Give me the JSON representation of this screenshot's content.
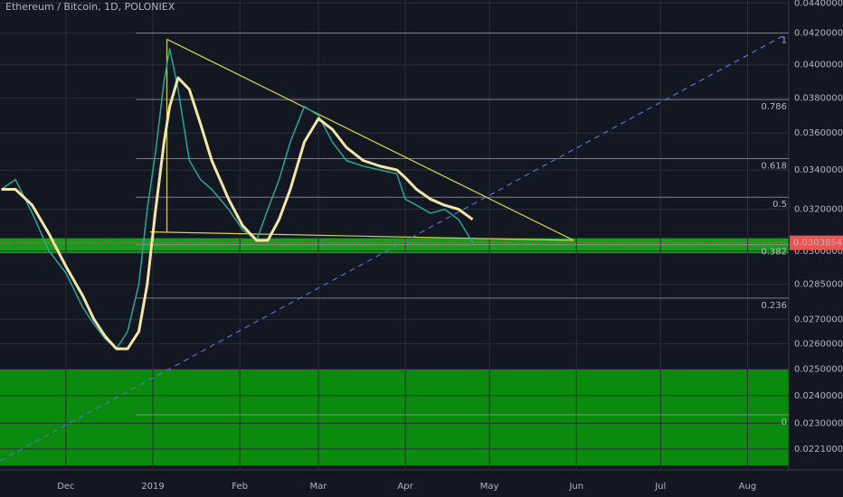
{
  "chart_data": {
    "type": "line",
    "title": "Ethereum / Bitcoin, 1D, POLONIEX",
    "log_scale": true,
    "grid": true,
    "xlim": [
      -23.5,
      257.7
    ],
    "ylim": [
      0.0214,
      0.0442
    ],
    "xticks": [
      {
        "value": 0,
        "label": "Dec"
      },
      {
        "value": 31,
        "label": "2019"
      },
      {
        "value": 62,
        "label": "Feb"
      },
      {
        "value": 90,
        "label": "Mar"
      },
      {
        "value": 121,
        "label": "Apr"
      },
      {
        "value": 151,
        "label": "May"
      },
      {
        "value": 182,
        "label": "Jun"
      },
      {
        "value": 212,
        "label": "Jul"
      },
      {
        "value": 243,
        "label": "Aug"
      }
    ],
    "yticks": [
      {
        "value": 0.044,
        "label": "0.04400000"
      },
      {
        "value": 0.042,
        "label": "0.04200000"
      },
      {
        "value": 0.04,
        "label": "0.04000000"
      },
      {
        "value": 0.038,
        "label": "0.03800000"
      },
      {
        "value": 0.036,
        "label": "0.03600000"
      },
      {
        "value": 0.034,
        "label": "0.03400000"
      },
      {
        "value": 0.032,
        "label": "0.03200000"
      },
      {
        "value": 0.03,
        "label": "0.03000000"
      },
      {
        "value": 0.0285,
        "label": "0.02850000"
      },
      {
        "value": 0.027,
        "label": "0.02700000"
      },
      {
        "value": 0.026,
        "label": "0.02600000"
      },
      {
        "value": 0.025,
        "label": "0.02500000"
      },
      {
        "value": 0.024,
        "label": "0.02400000"
      },
      {
        "value": 0.023,
        "label": "0.02300000"
      },
      {
        "value": 0.0221,
        "label": "0.02210000"
      }
    ],
    "x": [
      -23,
      -18,
      -12,
      -6,
      0,
      6,
      10,
      14,
      18,
      22,
      26,
      29,
      32,
      35,
      37,
      40,
      44,
      48,
      52,
      58,
      63,
      68,
      72,
      76,
      80,
      85,
      90,
      95,
      100,
      106,
      112,
      118,
      121,
      125,
      130,
      135,
      140,
      145
    ],
    "series": [
      {
        "color": "#26a69a",
        "values": [
          0.033,
          0.0335,
          0.0318,
          0.03,
          0.029,
          0.0275,
          0.0268,
          0.0262,
          0.0258,
          0.0265,
          0.0285,
          0.032,
          0.035,
          0.039,
          0.041,
          0.0385,
          0.0345,
          0.0335,
          0.033,
          0.032,
          0.031,
          0.0305,
          0.032,
          0.0335,
          0.0355,
          0.0375,
          0.037,
          0.0355,
          0.0345,
          0.0342,
          0.034,
          0.0338,
          0.0325,
          0.0322,
          0.0318,
          0.032,
          0.0315,
          0.0304
        ]
      },
      {
        "color": "#f3e6a6",
        "values": [
          0.033,
          0.033,
          0.0322,
          0.0308,
          0.0293,
          0.028,
          0.027,
          0.0263,
          0.0258,
          0.0258,
          0.0265,
          0.0285,
          0.032,
          0.0355,
          0.0375,
          0.0392,
          0.0385,
          0.0365,
          0.0345,
          0.0325,
          0.0312,
          0.0305,
          0.0305,
          0.0315,
          0.033,
          0.0355,
          0.0368,
          0.0362,
          0.0352,
          0.0345,
          0.0342,
          0.034,
          0.0336,
          0.033,
          0.0325,
          0.0322,
          0.032,
          0.0315
        ]
      }
    ],
    "last_price": {
      "value": 0.03038543,
      "label": "0.03038543",
      "color": "#ef5350"
    },
    "zones": [
      {
        "low": 0.0299,
        "high": 0.0306,
        "color": "#1fb21f"
      },
      {
        "low": 0.02155,
        "high": 0.025,
        "color": "#0aa00a"
      }
    ],
    "fib": {
      "x0": 25,
      "levels": [
        {
          "ratio": 1,
          "price": 0.042
        },
        {
          "ratio": 0.786,
          "price": 0.0379
        },
        {
          "ratio": 0.618,
          "price": 0.0346
        },
        {
          "ratio": 0.5,
          "price": 0.0326
        },
        {
          "ratio": 0.382,
          "price": 0.0303
        },
        {
          "ratio": 0.236,
          "price": 0.0279
        },
        {
          "ratio": 0,
          "price": 0.0233
        }
      ]
    },
    "trendlines": [
      {
        "x": [
          36,
          181
        ],
        "y": [
          0.0416,
          0.0305
        ],
        "color": "#d7d24a"
      },
      {
        "x": [
          30,
          181
        ],
        "y": [
          0.0309,
          0.0305
        ],
        "color": "#d7d24a"
      },
      {
        "x": [
          36,
          36
        ],
        "y": [
          0.0416,
          0.0309
        ],
        "color": "#d7d24a"
      },
      {
        "x": [
          -23.5,
          255.5
        ],
        "y": [
          0.0217,
          0.0418
        ],
        "color": "#5b6fd6",
        "dashed": true
      }
    ]
  }
}
